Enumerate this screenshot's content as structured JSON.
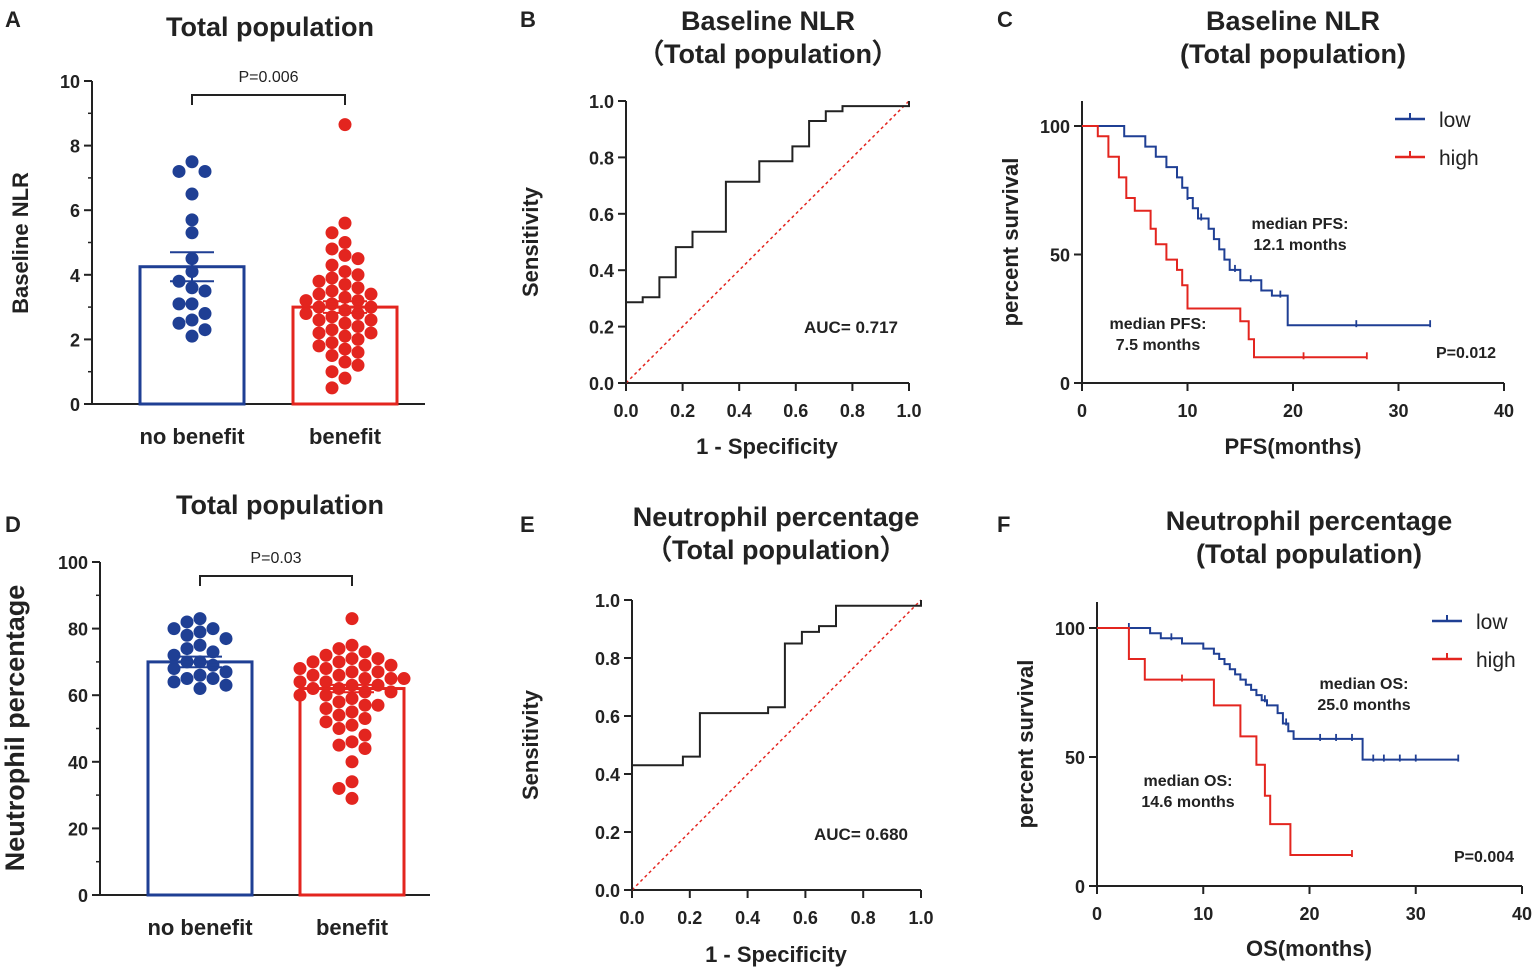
{
  "colors": {
    "blue": "#1f3f94",
    "red": "#e3251f",
    "axis": "#222222",
    "ref": "#e3251f"
  },
  "chart_data": [
    {
      "panel": "A",
      "type": "bar",
      "title": "Total population",
      "ylabel": "Baseline NLR",
      "categories": [
        "no benefit",
        "benefit"
      ],
      "ylim": [
        0,
        10
      ],
      "yticks": [
        "0",
        "2",
        "4",
        "6",
        "8",
        "10"
      ],
      "series": [
        {
          "name": "no benefit",
          "mean": 4.25,
          "sem": 0.45,
          "points": [
            7.5,
            7.2,
            7.2,
            6.5,
            5.7,
            5.3,
            4.5,
            4.1,
            3.8,
            3.6,
            3.5,
            3.1,
            3.1,
            2.8,
            2.6,
            2.5,
            2.3,
            2.1
          ]
        },
        {
          "name": "benefit",
          "mean": 3.0,
          "sem": 0.18,
          "points": [
            8.65,
            5.6,
            5.3,
            5.0,
            4.8,
            4.6,
            4.5,
            4.3,
            4.1,
            4.0,
            3.9,
            3.8,
            3.7,
            3.6,
            3.5,
            3.4,
            3.4,
            3.3,
            3.2,
            3.2,
            3.1,
            3.0,
            3.0,
            2.9,
            2.8,
            2.8,
            2.7,
            2.6,
            2.6,
            2.5,
            2.4,
            2.3,
            2.2,
            2.2,
            2.1,
            2.0,
            1.9,
            1.8,
            1.7,
            1.6,
            1.5,
            1.3,
            1.2,
            1.0,
            0.8,
            0.5
          ]
        }
      ],
      "pvalue": "P=0.006"
    },
    {
      "panel": "B",
      "type": "line",
      "title": [
        "Baseline NLR",
        "（Total population）"
      ],
      "xlabel": "1 - Specificity",
      "ylabel": "Sensitivity",
      "xlim": [
        0,
        1
      ],
      "ylim": [
        0,
        1
      ],
      "xticks": [
        "0.0",
        "0.2",
        "0.4",
        "0.6",
        "0.8",
        "1.0"
      ],
      "yticks": [
        "0.0",
        "0.2",
        "0.4",
        "0.6",
        "0.8",
        "1.0"
      ],
      "roc": [
        [
          0,
          0
        ],
        [
          0,
          0.286
        ],
        [
          0.059,
          0.286
        ],
        [
          0.059,
          0.304
        ],
        [
          0.118,
          0.304
        ],
        [
          0.118,
          0.375
        ],
        [
          0.176,
          0.375
        ],
        [
          0.176,
          0.482
        ],
        [
          0.235,
          0.482
        ],
        [
          0.235,
          0.536
        ],
        [
          0.353,
          0.536
        ],
        [
          0.353,
          0.714
        ],
        [
          0.471,
          0.714
        ],
        [
          0.471,
          0.786
        ],
        [
          0.588,
          0.786
        ],
        [
          0.588,
          0.839
        ],
        [
          0.647,
          0.839
        ],
        [
          0.647,
          0.929
        ],
        [
          0.706,
          0.929
        ],
        [
          0.706,
          0.964
        ],
        [
          0.765,
          0.964
        ],
        [
          0.765,
          0.982
        ],
        [
          1.0,
          0.982
        ],
        [
          1.0,
          1.0
        ]
      ],
      "auc": "AUC= 0.717"
    },
    {
      "panel": "C",
      "type": "line",
      "title": [
        "Baseline NLR",
        "(Total population)"
      ],
      "xlabel": "PFS(months)",
      "ylabel": "percent survival",
      "xlim": [
        0,
        40
      ],
      "ylim": [
        0,
        100
      ],
      "xticks": [
        "0",
        "10",
        "20",
        "30",
        "40"
      ],
      "yticks": [
        "0",
        "50",
        "100"
      ],
      "series": [
        {
          "name": "low",
          "steps": [
            [
              0,
              100
            ],
            [
              4,
              100
            ],
            [
              4,
              96
            ],
            [
              6,
              96
            ],
            [
              6,
              92
            ],
            [
              7,
              92
            ],
            [
              7,
              88
            ],
            [
              8,
              88
            ],
            [
              8,
              84
            ],
            [
              9,
              84
            ],
            [
              9,
              80
            ],
            [
              9.5,
              80
            ],
            [
              9.5,
              76
            ],
            [
              10,
              76
            ],
            [
              10,
              72
            ],
            [
              10.5,
              72
            ],
            [
              10.5,
              68
            ],
            [
              11,
              68
            ],
            [
              11,
              64
            ],
            [
              12,
              64
            ],
            [
              12,
              60
            ],
            [
              12.5,
              60
            ],
            [
              12.5,
              56
            ],
            [
              13,
              56
            ],
            [
              13,
              52
            ],
            [
              13.5,
              52
            ],
            [
              13.5,
              48
            ],
            [
              14,
              48
            ],
            [
              14,
              44
            ],
            [
              15,
              44
            ],
            [
              15,
              40
            ],
            [
              17,
              40
            ],
            [
              17,
              36
            ],
            [
              18,
              36
            ],
            [
              18,
              34
            ],
            [
              19.5,
              34
            ],
            [
              19.5,
              22.5
            ],
            [
              33,
              22.5
            ]
          ],
          "censor": [
            [
              10,
              72
            ],
            [
              11.3,
              64
            ],
            [
              14.5,
              44
            ],
            [
              16,
              40
            ],
            [
              18.8,
              34
            ],
            [
              26,
              22.5
            ],
            [
              33,
              22.5
            ]
          ]
        },
        {
          "name": "high",
          "steps": [
            [
              0,
              100
            ],
            [
              1.5,
              100
            ],
            [
              1.5,
              96
            ],
            [
              2.5,
              96
            ],
            [
              2.5,
              88
            ],
            [
              3.5,
              88
            ],
            [
              3.5,
              80
            ],
            [
              4.2,
              80
            ],
            [
              4.2,
              72
            ],
            [
              5,
              72
            ],
            [
              5,
              67
            ],
            [
              6.5,
              67
            ],
            [
              6.5,
              60
            ],
            [
              7,
              60
            ],
            [
              7,
              54
            ],
            [
              8,
              54
            ],
            [
              8,
              48
            ],
            [
              9,
              48
            ],
            [
              9,
              44
            ],
            [
              9.5,
              44
            ],
            [
              9.5,
              38
            ],
            [
              10,
              38
            ],
            [
              10,
              29
            ],
            [
              15,
              29
            ],
            [
              15,
              24
            ],
            [
              15.8,
              24
            ],
            [
              15.8,
              17
            ],
            [
              16.3,
              17
            ],
            [
              16.3,
              10
            ],
            [
              27,
              10
            ]
          ],
          "censor": [
            [
              21,
              10
            ],
            [
              27,
              10
            ]
          ]
        }
      ],
      "annotations": [
        {
          "lines": [
            "median PFS:",
            "12.1 months"
          ]
        },
        {
          "lines": [
            "median PFS:",
            "7.5 months"
          ]
        }
      ],
      "pvalue": "P=0.012"
    },
    {
      "panel": "D",
      "type": "bar",
      "title": "Total population",
      "ylabel": "Neutrophil percentage",
      "categories": [
        "no benefit",
        "benefit"
      ],
      "ylim": [
        0,
        100
      ],
      "yticks": [
        "0",
        "20",
        "40",
        "60",
        "80",
        "100"
      ],
      "series": [
        {
          "name": "no benefit",
          "mean": 70,
          "sem": 1.6,
          "points": [
            83,
            82,
            80,
            80,
            79,
            78,
            77,
            75,
            74,
            73,
            72,
            70,
            70,
            69,
            68,
            67,
            66,
            65,
            65,
            64,
            63,
            62
          ]
        },
        {
          "name": "benefit",
          "mean": 62,
          "sem": 1.1,
          "points": [
            83,
            75,
            74,
            73,
            72,
            71,
            71,
            70,
            70,
            69,
            69,
            68,
            68,
            67,
            67,
            66,
            66,
            65,
            65,
            65,
            64,
            64,
            63,
            63,
            62,
            62,
            61,
            61,
            60,
            60,
            59,
            58,
            57,
            57,
            56,
            55,
            54,
            53,
            52,
            51,
            50,
            48,
            46,
            45,
            44,
            40,
            34,
            32,
            29
          ]
        }
      ],
      "pvalue": "P=0.03"
    },
    {
      "panel": "E",
      "type": "line",
      "title": [
        "Neutrophil percentage",
        "（Total population）"
      ],
      "xlabel": "1 - Specificity",
      "ylabel": "Sensitivity",
      "xlim": [
        0,
        1
      ],
      "ylim": [
        0,
        1
      ],
      "xticks": [
        "0.0",
        "0.2",
        "0.4",
        "0.6",
        "0.8",
        "1.0"
      ],
      "yticks": [
        "0.0",
        "0.2",
        "0.4",
        "0.6",
        "0.8",
        "1.0"
      ],
      "roc": [
        [
          0,
          0
        ],
        [
          0,
          0.43
        ],
        [
          0.176,
          0.43
        ],
        [
          0.176,
          0.46
        ],
        [
          0.235,
          0.46
        ],
        [
          0.235,
          0.61
        ],
        [
          0.471,
          0.61
        ],
        [
          0.471,
          0.63
        ],
        [
          0.529,
          0.63
        ],
        [
          0.529,
          0.85
        ],
        [
          0.588,
          0.85
        ],
        [
          0.588,
          0.89
        ],
        [
          0.647,
          0.89
        ],
        [
          0.647,
          0.91
        ],
        [
          0.706,
          0.91
        ],
        [
          0.706,
          0.98
        ],
        [
          1.0,
          0.98
        ],
        [
          1.0,
          1.0
        ]
      ],
      "auc": "AUC= 0.680"
    },
    {
      "panel": "F",
      "type": "line",
      "title": [
        "Neutrophil percentage",
        "(Total population)"
      ],
      "xlabel": "OS(months)",
      "ylabel": "percent survival",
      "xlim": [
        0,
        40
      ],
      "ylim": [
        0,
        100
      ],
      "xticks": [
        "0",
        "10",
        "20",
        "30",
        "40"
      ],
      "yticks": [
        "0",
        "50",
        "100"
      ],
      "series": [
        {
          "name": "low",
          "steps": [
            [
              0,
              100
            ],
            [
              5,
              100
            ],
            [
              5,
              98
            ],
            [
              6,
              98
            ],
            [
              6,
              96
            ],
            [
              8,
              96
            ],
            [
              8,
              94
            ],
            [
              10,
              94
            ],
            [
              10,
              92
            ],
            [
              11,
              92
            ],
            [
              11,
              90
            ],
            [
              11.5,
              90
            ],
            [
              11.5,
              88
            ],
            [
              12,
              88
            ],
            [
              12,
              86
            ],
            [
              12.5,
              86
            ],
            [
              12.5,
              84
            ],
            [
              13,
              84
            ],
            [
              13,
              82
            ],
            [
              13.5,
              82
            ],
            [
              13.5,
              80
            ],
            [
              14,
              80
            ],
            [
              14,
              78
            ],
            [
              14.5,
              78
            ],
            [
              14.5,
              76
            ],
            [
              15,
              76
            ],
            [
              15,
              74
            ],
            [
              15.5,
              74
            ],
            [
              15.5,
              72
            ],
            [
              16,
              72
            ],
            [
              16,
              70
            ],
            [
              17,
              70
            ],
            [
              17,
              67
            ],
            [
              17.5,
              67
            ],
            [
              17.5,
              63
            ],
            [
              18,
              63
            ],
            [
              18,
              60
            ],
            [
              18.5,
              60
            ],
            [
              18.5,
              57
            ],
            [
              25,
              57
            ],
            [
              25,
              49
            ],
            [
              34,
              49
            ]
          ],
          "censor": [
            [
              3,
              100
            ],
            [
              7,
              96
            ],
            [
              15.8,
              72
            ],
            [
              17.8,
              63
            ],
            [
              21,
              57
            ],
            [
              22.5,
              57
            ],
            [
              24,
              57
            ],
            [
              26,
              49
            ],
            [
              27,
              49
            ],
            [
              28.5,
              49
            ],
            [
              30,
              49
            ],
            [
              34,
              49
            ]
          ]
        },
        {
          "name": "high",
          "steps": [
            [
              0,
              100
            ],
            [
              3,
              100
            ],
            [
              3,
              88
            ],
            [
              4.5,
              88
            ],
            [
              4.5,
              80
            ],
            [
              11,
              80
            ],
            [
              11,
              70
            ],
            [
              13.5,
              70
            ],
            [
              13.5,
              58
            ],
            [
              15,
              58
            ],
            [
              15,
              47
            ],
            [
              15.8,
              47
            ],
            [
              15.8,
              35
            ],
            [
              16.3,
              35
            ],
            [
              16.3,
              24
            ],
            [
              18.2,
              24
            ],
            [
              18.2,
              12
            ],
            [
              24,
              12
            ]
          ],
          "censor": [
            [
              8,
              80
            ],
            [
              24,
              12
            ]
          ]
        }
      ],
      "annotations": [
        {
          "lines": [
            "median OS:",
            "25.0 months"
          ]
        },
        {
          "lines": [
            "median OS:",
            "14.6 months"
          ]
        }
      ],
      "pvalue": "P=0.004"
    }
  ]
}
